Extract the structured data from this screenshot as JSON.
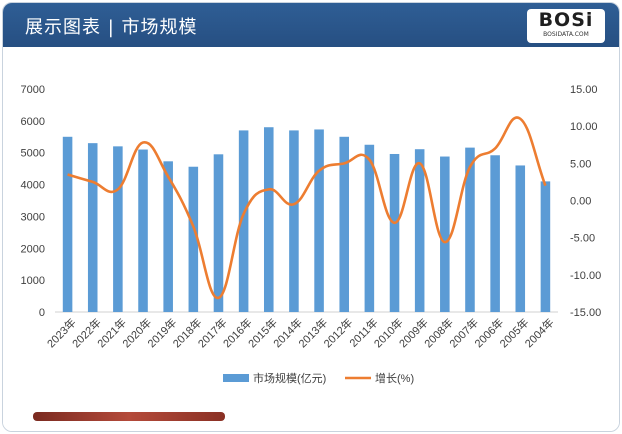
{
  "header": {
    "title": "展示图表 | 市场规模"
  },
  "logo": {
    "text": "BOSi",
    "subtext": "BOSIDATA.COM"
  },
  "colors": {
    "header_bg": "#2f5e95",
    "bar": "#5b9bd5",
    "line": "#ed7d31",
    "footer_bar": "#9c3b2e"
  },
  "chart_data": {
    "type": "bar+line",
    "categories": [
      "2023年",
      "2022年",
      "2021年",
      "2020年",
      "2019年",
      "2018年",
      "2017年",
      "2016年",
      "2015年",
      "2014年",
      "2013年",
      "2012年",
      "2011年",
      "2010年",
      "2009年",
      "2008年",
      "2007年",
      "2006年",
      "2005年",
      "2004年"
    ],
    "series": [
      {
        "name": "市场规模(亿元)",
        "type": "bar",
        "axis": "left",
        "values": [
          5500,
          5300,
          5200,
          5100,
          4730,
          4560,
          4950,
          5700,
          5800,
          5700,
          5730,
          5500,
          5250,
          4960,
          5110,
          4880,
          5160,
          4920,
          4600,
          4100
        ]
      },
      {
        "name": "增长(%)",
        "type": "line",
        "axis": "right",
        "values": [
          3.5,
          2.5,
          1.5,
          7.8,
          3.2,
          -3.5,
          -13.1,
          -1.8,
          1.5,
          -0.5,
          4.0,
          5.0,
          5.5,
          -3.0,
          5.0,
          -5.6,
          4.5,
          7.0,
          11.0,
          2.0
        ]
      }
    ],
    "y_left": {
      "min": 0,
      "max": 7000,
      "ticks": [
        "0",
        "1000",
        "2000",
        "3000",
        "4000",
        "5000",
        "6000",
        "7000"
      ]
    },
    "y_right": {
      "min": -15,
      "max": 15,
      "ticks": [
        "-15.00",
        "-10.00",
        "-5.00",
        "0.00",
        "5.00",
        "10.00",
        "15.00"
      ]
    },
    "grid": false,
    "legend_position": "bottom"
  }
}
